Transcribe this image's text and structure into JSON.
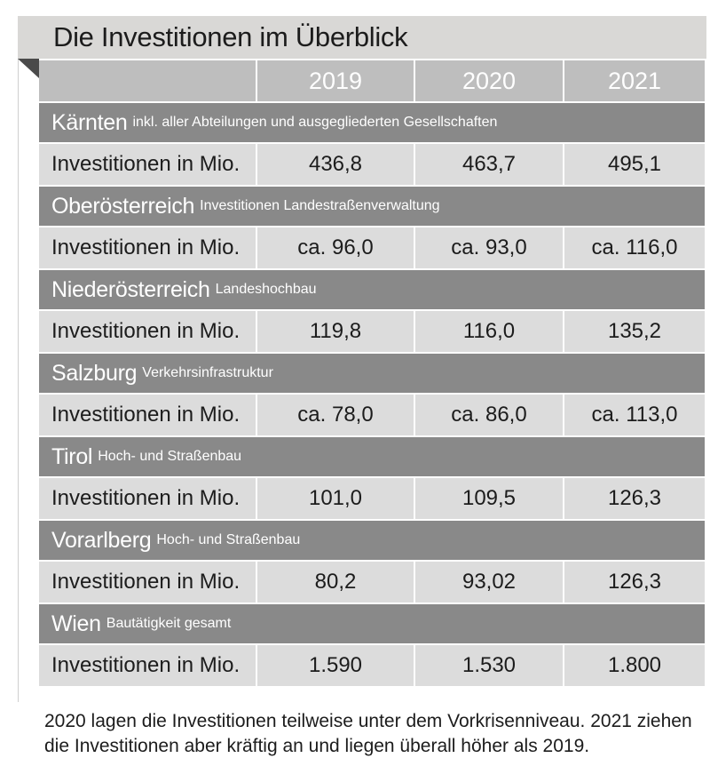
{
  "title": "Die Investitionen im Überblick",
  "years": [
    "2019",
    "2020",
    "2021"
  ],
  "row_label": "Investitionen in Mio.",
  "regions": [
    {
      "name": "Kärnten",
      "note": "inkl. aller Abteilungen und ausgegliederten Gesellschaften",
      "values": [
        "436,8",
        "463,7",
        "495,1"
      ]
    },
    {
      "name": "Oberösterreich",
      "note": "Investitionen Landestraßenverwaltung",
      "values": [
        "ca. 96,0",
        "ca. 93,0",
        "ca. 116,0"
      ]
    },
    {
      "name": "Niederösterreich",
      "note": "Landeshochbau",
      "values": [
        "119,8",
        "116,0",
        "135,2"
      ]
    },
    {
      "name": "Salzburg",
      "note": "Verkehrsinfrastruktur",
      "values": [
        "ca. 78,0",
        "ca. 86,0",
        "ca. 113,0"
      ]
    },
    {
      "name": "Tirol",
      "note": "Hoch- und Straßenbau",
      "values": [
        "101,0",
        "109,5",
        "126,3"
      ]
    },
    {
      "name": "Vorarlberg",
      "note": "Hoch- und Straßenbau",
      "values": [
        "80,2",
        "93,02",
        "126,3"
      ]
    },
    {
      "name": "Wien",
      "note": "Bautätigkeit gesamt",
      "values": [
        "1.590",
        "1.530",
        "1.800"
      ]
    }
  ],
  "footnote": "2020 lagen die Investitionen teilweise unter dem Vorkrisenniveau. 2021 ziehen die Investitionen aber kräftig an und liegen überall höher als 2019.",
  "colors": {
    "title_band": "#d9d8d6",
    "header_cell": "#bebebe",
    "region_band": "#898989",
    "data_cell": "#dcdcdc",
    "fold": "#4a4a4a"
  }
}
